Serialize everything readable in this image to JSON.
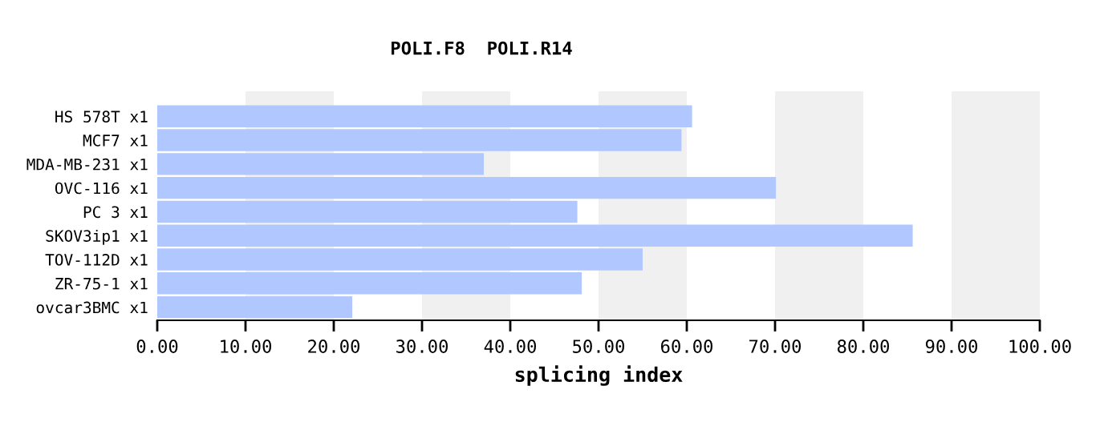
{
  "chart_data": {
    "type": "bar",
    "orientation": "horizontal",
    "title": "POLI.F8  POLI.R14",
    "xlabel": "splicing index",
    "categories": [
      "HS 578T x1",
      "MCF7 x1",
      "MDA-MB-231 x1",
      "OVC-116 x1",
      "PC 3 x1",
      "SKOV3ip1 x1",
      "TOV-112D x1",
      "ZR-75-1 x1",
      "ovcar3BMC x1"
    ],
    "values": [
      60.6,
      59.4,
      37.0,
      70.1,
      47.6,
      85.6,
      55.0,
      48.1,
      22.1
    ],
    "color": "#b0c8ff",
    "xlim": [
      0,
      100
    ],
    "xticks": [
      {
        "value": 0,
        "label": "0.00"
      },
      {
        "value": 10,
        "label": "10.00"
      },
      {
        "value": 20,
        "label": "20.00"
      },
      {
        "value": 30,
        "label": "30.00"
      },
      {
        "value": 40,
        "label": "40.00"
      },
      {
        "value": 50,
        "label": "50.00"
      },
      {
        "value": 60,
        "label": "60.00"
      },
      {
        "value": 70,
        "label": "70.00"
      },
      {
        "value": 80,
        "label": "80.00"
      },
      {
        "value": 90,
        "label": "90.00"
      },
      {
        "value": 100,
        "label": "100.00"
      }
    ],
    "bands": [
      {
        "axis": "x",
        "from": 10,
        "to": 20,
        "color": "#f0f0f0"
      },
      {
        "axis": "x",
        "from": 30,
        "to": 40,
        "color": "#f0f0f0"
      },
      {
        "axis": "x",
        "from": 50,
        "to": 60,
        "color": "#f0f0f0"
      },
      {
        "axis": "x",
        "from": 70,
        "to": 80,
        "color": "#f0f0f0"
      },
      {
        "axis": "x",
        "from": 90,
        "to": 100,
        "color": "#f0f0f0"
      }
    ],
    "grid": false,
    "legend": false
  }
}
